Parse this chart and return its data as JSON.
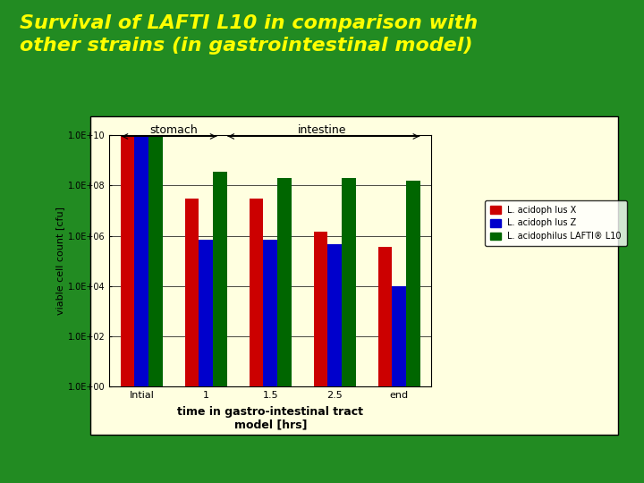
{
  "title_line1": "Survival of LAFTI L10 in comparison with",
  "title_line2": "other strains (in gastrointestinal model)",
  "title_color": "#FFFF00",
  "bg_color": "#228B22",
  "chart_bg_color": "#FFFFE0",
  "categories": [
    "Intial",
    "1",
    "1.5",
    "2.5",
    "end"
  ],
  "series": {
    "L. acidoph lus X": {
      "color": "#CC0000",
      "values": [
        9500000000.0,
        30000000.0,
        30000000.0,
        1500000.0,
        350000.0
      ]
    },
    "L. acidoph lus Z": {
      "color": "#0000CC",
      "values": [
        9500000000.0,
        700000.0,
        700000.0,
        450000.0,
        10000.0
      ]
    },
    "L. acidophilus LAFTI® L10": {
      "color": "#006600",
      "values": [
        9500000000.0,
        350000000.0,
        200000000.0,
        200000000.0,
        150000000.0
      ]
    }
  },
  "ylabel": "viable cell count [cfu]",
  "xlabel": "time in gastro-intestinal tract\nmodel [hrs]",
  "ylim_log_min": 1,
  "ylim_log_max": 10000000000.0,
  "stomach_label": "stomach",
  "intestine_label": "intestine"
}
